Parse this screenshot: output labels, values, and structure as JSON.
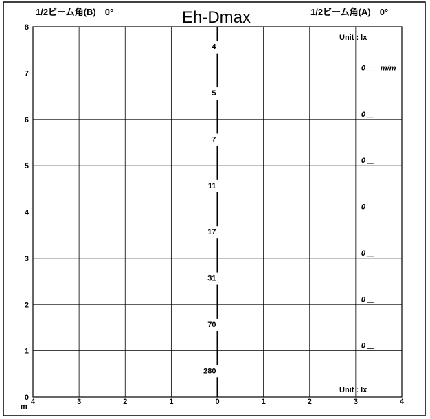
{
  "chart_data": {
    "type": "line",
    "title": "Eh-Dmax",
    "header_left": "1/2ビーム角(B)　0°",
    "header_right": "1/2ビーム角(A)　0°",
    "unit_top": "Unit : lx",
    "unit_bottom": "Unit : lx",
    "y_unit": "m",
    "ylim": [
      0,
      8
    ],
    "xlim": [
      -4,
      4
    ],
    "y_ticks": [
      "0",
      "1",
      "2",
      "3",
      "4",
      "5",
      "6",
      "7",
      "8"
    ],
    "x_ticks": [
      "4",
      "3",
      "2",
      "1",
      "0",
      "1",
      "2",
      "3",
      "4"
    ],
    "grid": true,
    "illuminance_labels": [
      {
        "y": 7.5,
        "value": "4"
      },
      {
        "y": 6.5,
        "value": "5"
      },
      {
        "y": 5.5,
        "value": "7"
      },
      {
        "y": 4.5,
        "value": "11"
      },
      {
        "y": 3.5,
        "value": "17"
      },
      {
        "y": 2.5,
        "value": "31"
      },
      {
        "y": 1.5,
        "value": "70"
      },
      {
        "y": 0.5,
        "value": "280"
      }
    ],
    "beam_width_labels": [
      {
        "y": 7,
        "value": "0",
        "unit": "m/m"
      },
      {
        "y": 6,
        "value": "0"
      },
      {
        "y": 5,
        "value": "0"
      },
      {
        "y": 4,
        "value": "0"
      },
      {
        "y": 3,
        "value": "0"
      },
      {
        "y": 2,
        "value": "0"
      },
      {
        "y": 1,
        "value": "0"
      }
    ]
  }
}
